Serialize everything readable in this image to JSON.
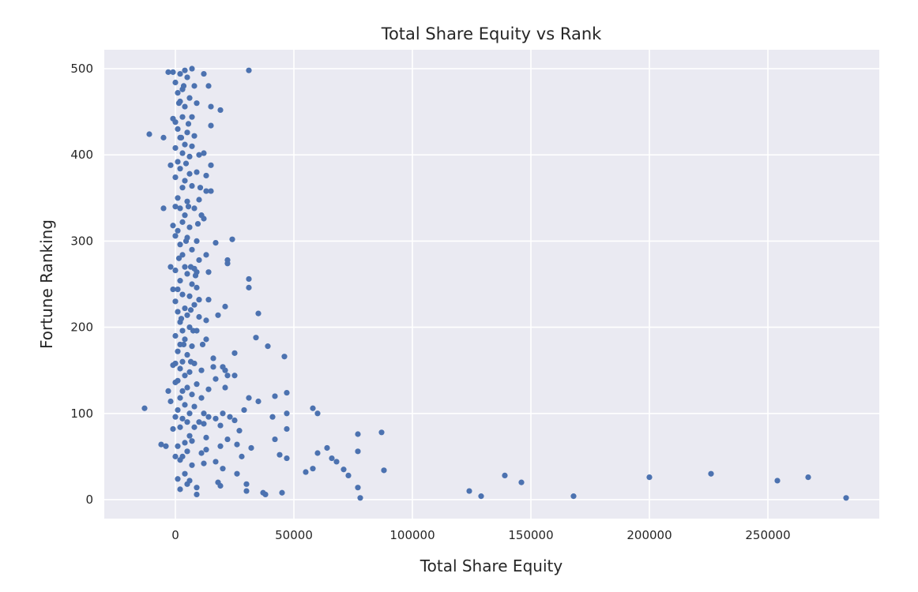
{
  "chart_data": {
    "type": "scatter",
    "title": "Total Share Equity vs Rank",
    "xlabel": "Total Share Equity",
    "ylabel": "Fortune Ranking",
    "xlim": [
      -30000,
      297000
    ],
    "ylim": [
      -22,
      522
    ],
    "xticks": [
      0,
      50000,
      100000,
      150000,
      200000,
      250000
    ],
    "yticks": [
      0,
      100,
      200,
      300,
      400,
      500
    ],
    "grid": true,
    "colors": {
      "background": "#eaeaf2",
      "grid": "#ffffff",
      "marker": "#4c72b0",
      "text": "#262626"
    },
    "series": [
      {
        "name": "",
        "points": [
          [
            283000,
            2
          ],
          [
            267000,
            26
          ],
          [
            254000,
            22
          ],
          [
            226000,
            30
          ],
          [
            200000,
            26
          ],
          [
            168000,
            4
          ],
          [
            146000,
            20
          ],
          [
            139000,
            28
          ],
          [
            129000,
            4
          ],
          [
            124000,
            10
          ],
          [
            88000,
            34
          ],
          [
            87000,
            78
          ],
          [
            78000,
            2
          ],
          [
            77000,
            14
          ],
          [
            77000,
            56
          ],
          [
            77000,
            76
          ],
          [
            73000,
            28
          ],
          [
            71000,
            35
          ],
          [
            68000,
            44
          ],
          [
            66000,
            48
          ],
          [
            64000,
            60
          ],
          [
            60000,
            54
          ],
          [
            60000,
            100
          ],
          [
            58000,
            36
          ],
          [
            58000,
            106
          ],
          [
            55000,
            32
          ],
          [
            47000,
            48
          ],
          [
            47000,
            82
          ],
          [
            47000,
            100
          ],
          [
            47000,
            124
          ],
          [
            46000,
            166
          ],
          [
            45000,
            8
          ],
          [
            44000,
            52
          ],
          [
            42000,
            70
          ],
          [
            42000,
            120
          ],
          [
            41000,
            96
          ],
          [
            39000,
            178
          ],
          [
            38000,
            6
          ],
          [
            37000,
            8
          ],
          [
            35000,
            114
          ],
          [
            35000,
            216
          ],
          [
            34000,
            188
          ],
          [
            32000,
            60
          ],
          [
            31000,
            118
          ],
          [
            31000,
            256
          ],
          [
            31000,
            246
          ],
          [
            31000,
            498
          ],
          [
            30000,
            10
          ],
          [
            30000,
            18
          ],
          [
            29000,
            104
          ],
          [
            28000,
            50
          ],
          [
            27000,
            80
          ],
          [
            26000,
            64
          ],
          [
            26000,
            30
          ],
          [
            25000,
            170
          ],
          [
            25000,
            92
          ],
          [
            25000,
            144
          ],
          [
            24000,
            302
          ],
          [
            23000,
            96
          ],
          [
            22000,
            70
          ],
          [
            22000,
            144
          ],
          [
            22000,
            274
          ],
          [
            22000,
            278
          ],
          [
            21000,
            224
          ],
          [
            21000,
            130
          ],
          [
            21000,
            150
          ],
          [
            20000,
            36
          ],
          [
            20000,
            100
          ],
          [
            20000,
            154
          ],
          [
            19000,
            16
          ],
          [
            19000,
            86
          ],
          [
            19000,
            62
          ],
          [
            19000,
            452
          ],
          [
            18000,
            20
          ],
          [
            18000,
            214
          ],
          [
            17000,
            44
          ],
          [
            17000,
            94
          ],
          [
            17000,
            298
          ],
          [
            17000,
            140
          ],
          [
            16000,
            164
          ],
          [
            16000,
            154
          ],
          [
            15000,
            388
          ],
          [
            15000,
            456
          ],
          [
            15000,
            434
          ],
          [
            15000,
            358
          ],
          [
            14000,
            96
          ],
          [
            14000,
            128
          ],
          [
            14000,
            480
          ],
          [
            14000,
            232
          ],
          [
            14000,
            264
          ],
          [
            13000,
            72
          ],
          [
            13000,
            58
          ],
          [
            13000,
            186
          ],
          [
            13000,
            208
          ],
          [
            13000,
            284
          ],
          [
            13000,
            358
          ],
          [
            13000,
            376
          ],
          [
            12000,
            100
          ],
          [
            12000,
            88
          ],
          [
            12000,
            42
          ],
          [
            12000,
            402
          ],
          [
            12000,
            494
          ],
          [
            12000,
            326
          ],
          [
            11000,
            330
          ],
          [
            11000,
            150
          ],
          [
            11000,
            54
          ],
          [
            11000,
            118
          ],
          [
            10000,
            90
          ],
          [
            10000,
            212
          ],
          [
            10000,
            278
          ],
          [
            10000,
            348
          ],
          [
            10000,
            232
          ],
          [
            10000,
            400
          ],
          [
            9000,
            6
          ],
          [
            9000,
            134
          ],
          [
            9000,
            196
          ],
          [
            9000,
            246
          ],
          [
            9000,
            264
          ],
          [
            9000,
            300
          ],
          [
            9000,
            380
          ],
          [
            9000,
            460
          ],
          [
            9000,
            14
          ],
          [
            8000,
            84
          ],
          [
            8000,
            108
          ],
          [
            8000,
            158
          ],
          [
            8000,
            226
          ],
          [
            8000,
            268
          ],
          [
            8000,
            338
          ],
          [
            8000,
            422
          ],
          [
            8000,
            480
          ],
          [
            7000,
            40
          ],
          [
            7000,
            68
          ],
          [
            7000,
            122
          ],
          [
            7000,
            178
          ],
          [
            7000,
            250
          ],
          [
            7000,
            290
          ],
          [
            7000,
            364
          ],
          [
            7000,
            410
          ],
          [
            7000,
            444
          ],
          [
            7000,
            500
          ],
          [
            6000,
            22
          ],
          [
            6000,
            74
          ],
          [
            6000,
            100
          ],
          [
            6000,
            148
          ],
          [
            6000,
            200
          ],
          [
            6000,
            236
          ],
          [
            6000,
            316
          ],
          [
            6000,
            378
          ],
          [
            6000,
            398
          ],
          [
            6000,
            466
          ],
          [
            5000,
            18
          ],
          [
            5000,
            56
          ],
          [
            5000,
            90
          ],
          [
            5000,
            130
          ],
          [
            5000,
            168
          ],
          [
            5000,
            214
          ],
          [
            5000,
            262
          ],
          [
            5000,
            304
          ],
          [
            5000,
            346
          ],
          [
            5000,
            426
          ],
          [
            5000,
            490
          ],
          [
            4000,
            30
          ],
          [
            4000,
            66
          ],
          [
            4000,
            110
          ],
          [
            4000,
            144
          ],
          [
            4000,
            186
          ],
          [
            4000,
            222
          ],
          [
            4000,
            270
          ],
          [
            4000,
            330
          ],
          [
            4000,
            370
          ],
          [
            4000,
            412
          ],
          [
            4000,
            456
          ],
          [
            4000,
            498
          ],
          [
            3000,
            50
          ],
          [
            3000,
            94
          ],
          [
            3000,
            126
          ],
          [
            3000,
            160
          ],
          [
            3000,
            196
          ],
          [
            3000,
            238
          ],
          [
            3000,
            284
          ],
          [
            3000,
            322
          ],
          [
            3000,
            362
          ],
          [
            3000,
            402
          ],
          [
            3000,
            444
          ],
          [
            3000,
            476
          ],
          [
            2000,
            12
          ],
          [
            2000,
            46
          ],
          [
            2000,
            84
          ],
          [
            2000,
            118
          ],
          [
            2000,
            152
          ],
          [
            2000,
            180
          ],
          [
            2000,
            206
          ],
          [
            2000,
            254
          ],
          [
            2000,
            296
          ],
          [
            2000,
            338
          ],
          [
            2000,
            384
          ],
          [
            2000,
            420
          ],
          [
            2000,
            462
          ],
          [
            2000,
            494
          ],
          [
            1000,
            24
          ],
          [
            1000,
            62
          ],
          [
            1000,
            104
          ],
          [
            1000,
            138
          ],
          [
            1000,
            172
          ],
          [
            1000,
            218
          ],
          [
            1000,
            244
          ],
          [
            1000,
            312
          ],
          [
            1000,
            350
          ],
          [
            1000,
            392
          ],
          [
            1000,
            430
          ],
          [
            1000,
            472
          ],
          [
            0,
            50
          ],
          [
            0,
            96
          ],
          [
            0,
            136
          ],
          [
            0,
            158
          ],
          [
            0,
            190
          ],
          [
            0,
            230
          ],
          [
            0,
            266
          ],
          [
            0,
            306
          ],
          [
            0,
            340
          ],
          [
            0,
            374
          ],
          [
            0,
            408
          ],
          [
            0,
            438
          ],
          [
            0,
            484
          ],
          [
            -1000,
            82
          ],
          [
            -1000,
            156
          ],
          [
            -1000,
            244
          ],
          [
            -1000,
            318
          ],
          [
            -1000,
            442
          ],
          [
            -1000,
            496
          ],
          [
            -2000,
            114
          ],
          [
            -2000,
            270
          ],
          [
            -2000,
            388
          ],
          [
            -3000,
            126
          ],
          [
            -3000,
            496
          ],
          [
            -4000,
            62
          ],
          [
            -5000,
            338
          ],
          [
            -5000,
            420
          ],
          [
            -6000,
            64
          ],
          [
            -11000,
            424
          ],
          [
            -13000,
            106
          ],
          [
            3500,
            180
          ],
          [
            4500,
            300
          ],
          [
            5500,
            340
          ],
          [
            6500,
            270
          ],
          [
            2500,
            420
          ],
          [
            1500,
            460
          ],
          [
            3500,
            480
          ],
          [
            4500,
            390
          ],
          [
            5500,
            436
          ],
          [
            6500,
            220
          ],
          [
            2500,
            210
          ],
          [
            1500,
            280
          ],
          [
            8500,
            260
          ],
          [
            9500,
            320
          ],
          [
            10500,
            362
          ],
          [
            11500,
            180
          ],
          [
            7500,
            196
          ],
          [
            6500,
            160
          ]
        ]
      }
    ]
  }
}
